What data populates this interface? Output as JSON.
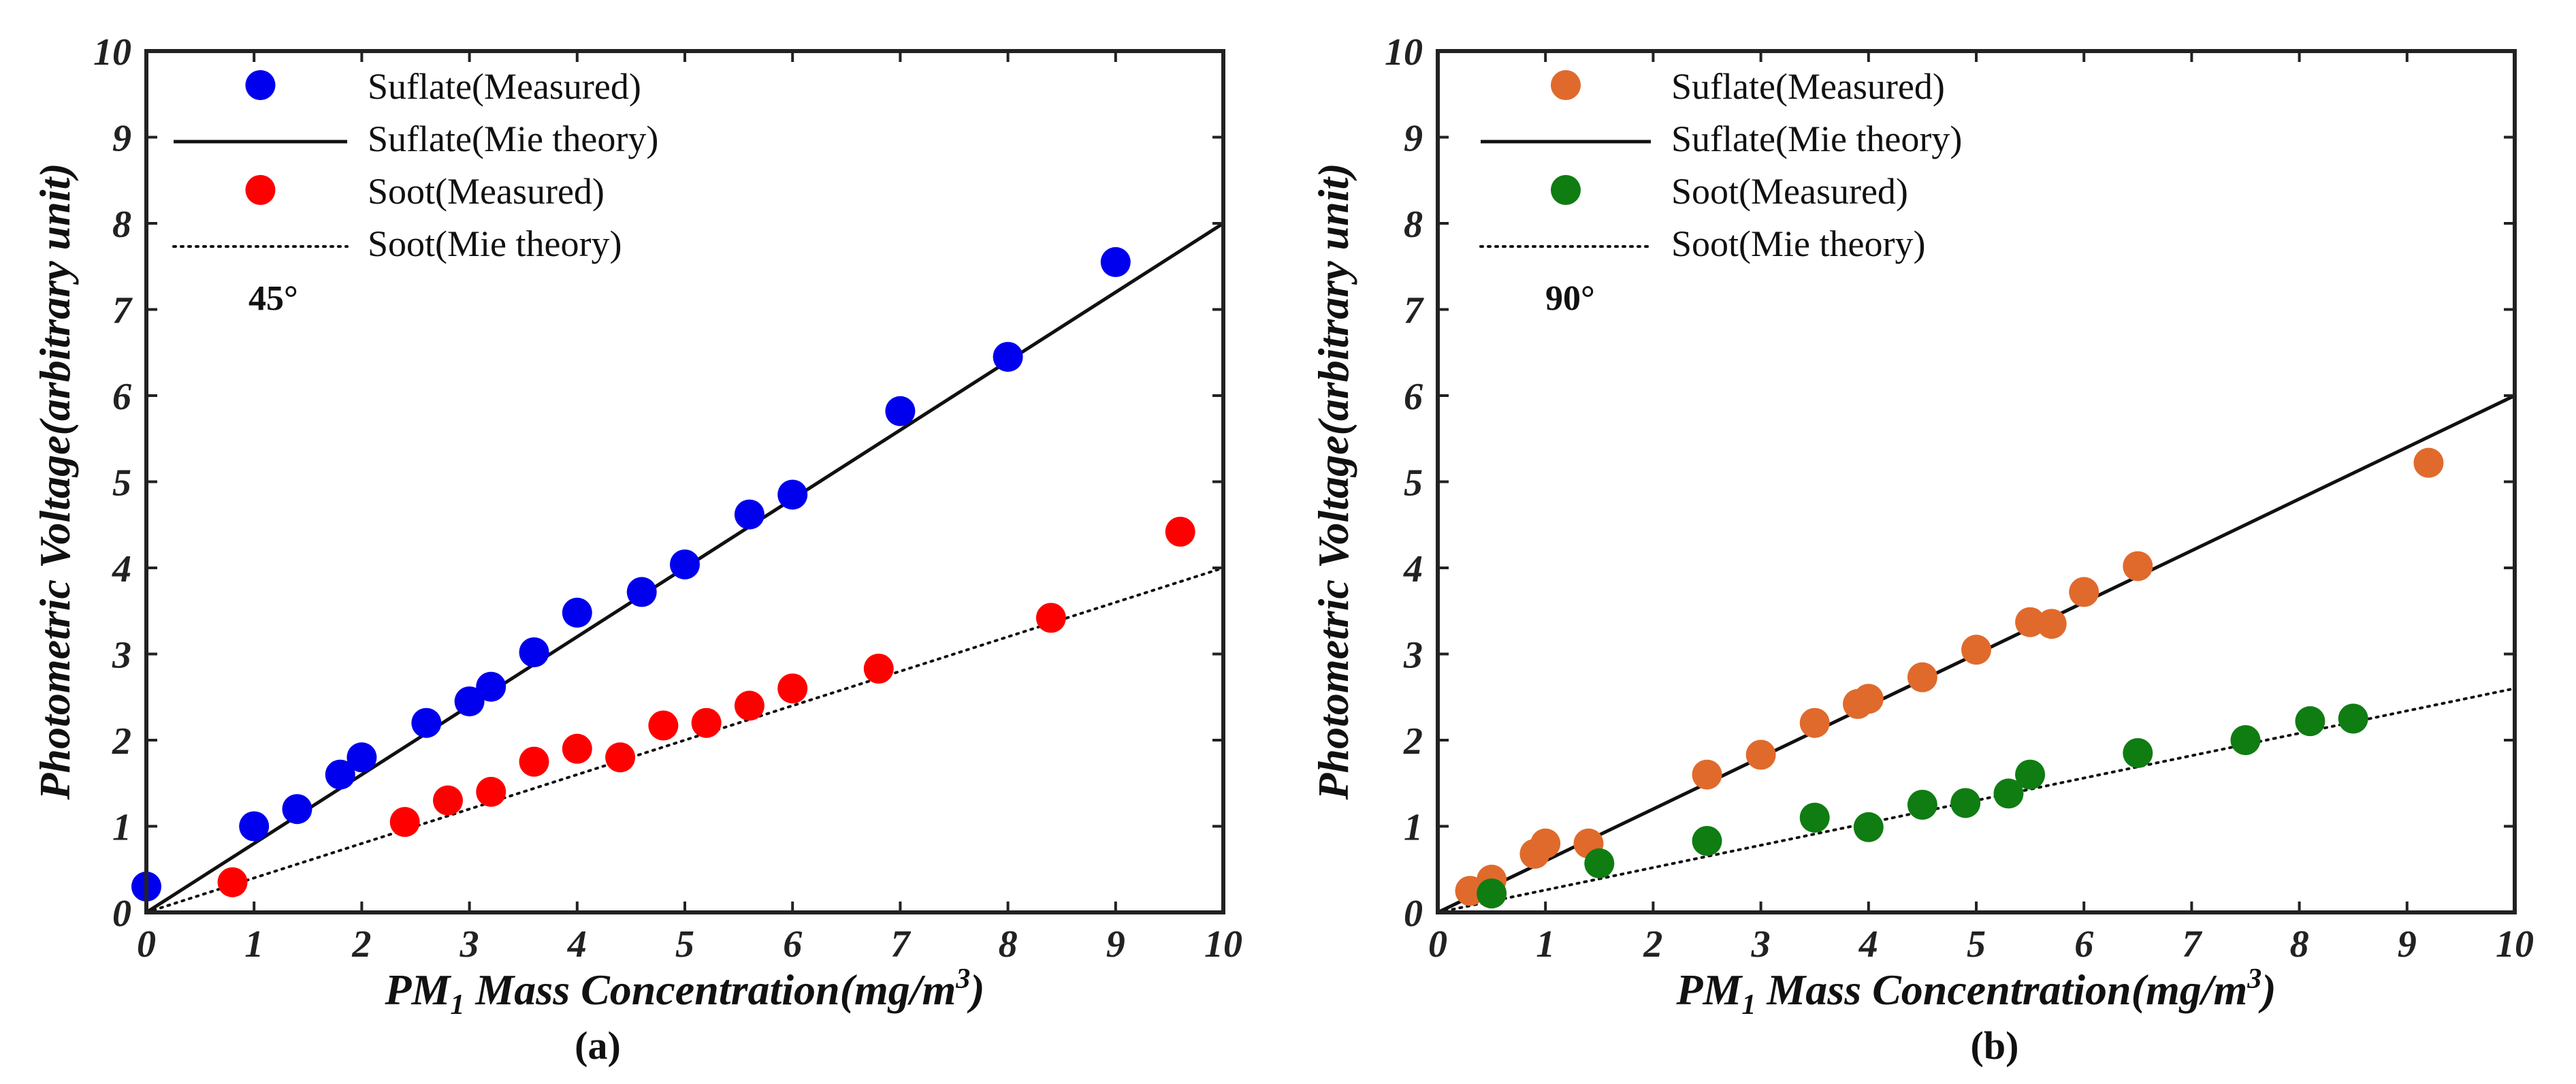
{
  "chart_data": [
    {
      "type": "scatter",
      "panel_label": "(a)",
      "angle_label": "45°",
      "xlabel_prefix": "PM",
      "xlabel_sub": "1",
      "xlabel_main": " Mass Concentration(mg/m",
      "xlabel_sup": "3",
      "xlabel_end": ")",
      "ylabel": "Photometric Voltage(arbitrary unit)",
      "xlim": [
        0,
        10
      ],
      "ylim": [
        0,
        10
      ],
      "x_ticks": [
        "0",
        "1",
        "2",
        "3",
        "4",
        "5",
        "6",
        "7",
        "8",
        "9",
        "10"
      ],
      "y_ticks": [
        "0",
        "1",
        "2",
        "3",
        "4",
        "5",
        "6",
        "7",
        "8",
        "9",
        "10"
      ],
      "series": [
        {
          "name": "Suflate(Measured)",
          "kind": "points",
          "color": "#0000ee",
          "x": [
            0,
            1,
            1.4,
            1.8,
            2.0,
            2.6,
            3.0,
            3.2,
            3.6,
            4.0,
            4.6,
            5.0,
            5.6,
            6.0,
            7.0,
            8.0,
            9.0
          ],
          "y": [
            0.3,
            1.0,
            1.2,
            1.6,
            1.8,
            2.2,
            2.45,
            2.62,
            3.02,
            3.48,
            3.72,
            4.04,
            4.62,
            4.85,
            5.82,
            6.45,
            7.55
          ]
        },
        {
          "name": "Suflate(Mie theory)",
          "kind": "line",
          "style": "solid",
          "color": "#111111",
          "x": [
            0,
            10
          ],
          "y": [
            0,
            8
          ]
        },
        {
          "name": "Soot(Measured)",
          "kind": "points",
          "color": "#ff0000",
          "x": [
            0.8,
            2.4,
            2.8,
            3.2,
            3.6,
            4.0,
            4.4,
            4.8,
            5.2,
            5.6,
            6.0,
            6.8,
            8.4,
            9.6
          ],
          "y": [
            0.35,
            1.05,
            1.3,
            1.4,
            1.75,
            1.9,
            1.8,
            2.17,
            2.2,
            2.4,
            2.6,
            2.83,
            3.42,
            4.42
          ]
        },
        {
          "name": "Soot(Mie theory)",
          "kind": "line",
          "style": "dotted",
          "color": "#111111",
          "x": [
            0,
            10
          ],
          "y": [
            0,
            4
          ]
        }
      ]
    },
    {
      "type": "scatter",
      "panel_label": "(b)",
      "angle_label": "90°",
      "xlabel_prefix": "PM",
      "xlabel_sub": "1",
      "xlabel_main": " Mass Concentration(mg/m",
      "xlabel_sup": "3",
      "xlabel_end": ")",
      "ylabel": "Photometric Voltage(arbitrary unit)",
      "xlim": [
        0,
        10
      ],
      "ylim": [
        0,
        10
      ],
      "x_ticks": [
        "0",
        "1",
        "2",
        "3",
        "4",
        "5",
        "6",
        "7",
        "8",
        "9",
        "10"
      ],
      "y_ticks": [
        "0",
        "1",
        "2",
        "3",
        "4",
        "5",
        "6",
        "7",
        "8",
        "9",
        "10"
      ],
      "series": [
        {
          "name": "Suflate(Measured)",
          "kind": "points",
          "color": "#e06a2c",
          "x": [
            0.3,
            0.5,
            0.9,
            1.0,
            1.4,
            2.5,
            3.0,
            3.5,
            3.9,
            4.0,
            4.5,
            5.0,
            5.5,
            5.7,
            6.0,
            6.5,
            9.2
          ],
          "y": [
            0.25,
            0.38,
            0.68,
            0.8,
            0.8,
            1.6,
            1.83,
            2.2,
            2.42,
            2.48,
            2.73,
            3.05,
            3.37,
            3.35,
            3.72,
            4.02,
            5.22
          ]
        },
        {
          "name": "Suflate(Mie theory)",
          "kind": "line",
          "style": "solid",
          "color": "#111111",
          "x": [
            0,
            10
          ],
          "y": [
            0,
            6
          ]
        },
        {
          "name": "Soot(Measured)",
          "kind": "points",
          "color": "#0f7d12",
          "x": [
            0.5,
            1.5,
            2.5,
            3.5,
            4.0,
            4.5,
            4.9,
            5.3,
            5.5,
            6.5,
            7.5,
            8.1,
            8.5
          ],
          "y": [
            0.22,
            0.57,
            0.83,
            1.1,
            0.99,
            1.25,
            1.27,
            1.38,
            1.6,
            1.85,
            2.0,
            2.22,
            2.25
          ]
        },
        {
          "name": "Soot(Mie theory)",
          "kind": "line",
          "style": "dotted",
          "color": "#111111",
          "x": [
            0,
            10
          ],
          "y": [
            0,
            2.6
          ]
        }
      ]
    }
  ]
}
